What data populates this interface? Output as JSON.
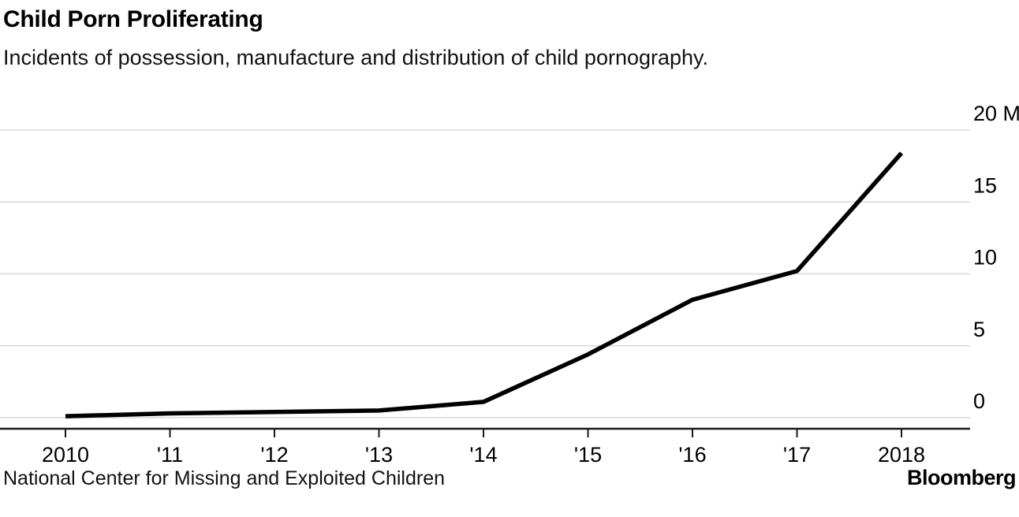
{
  "header": {
    "title": "Child Porn Proliferating",
    "subtitle": "Incidents of possession, manufacture and distribution of child pornography."
  },
  "chart_data": {
    "type": "line",
    "title": "Child Porn Proliferating",
    "subtitle": "Incidents of possession, manufacture and distribution of child pornography.",
    "x": [
      2010,
      2011,
      2012,
      2013,
      2014,
      2015,
      2016,
      2017,
      2018
    ],
    "x_tick_labels": [
      "2010",
      "'11",
      "'12",
      "'13",
      "'14",
      "'15",
      "'16",
      "'17",
      "2018"
    ],
    "values": [
      0.1,
      0.3,
      0.4,
      0.5,
      1.1,
      4.4,
      8.2,
      10.2,
      18.4
    ],
    "unit": "M",
    "ylim": [
      0,
      20
    ],
    "y_ticks": [
      0,
      5,
      10,
      15,
      20
    ],
    "y_tick_labels": [
      "0",
      "5",
      "10",
      "15",
      "20 M"
    ],
    "grid": true,
    "legend": "none",
    "line_color": "#000000"
  },
  "footer": {
    "source": "National Center for Missing and Exploited Children",
    "brand": "Bloomberg"
  },
  "colors": {
    "grid": "#d9d9d9",
    "axis": "#1a1a1a",
    "line": "#000000",
    "text": "#000000"
  }
}
